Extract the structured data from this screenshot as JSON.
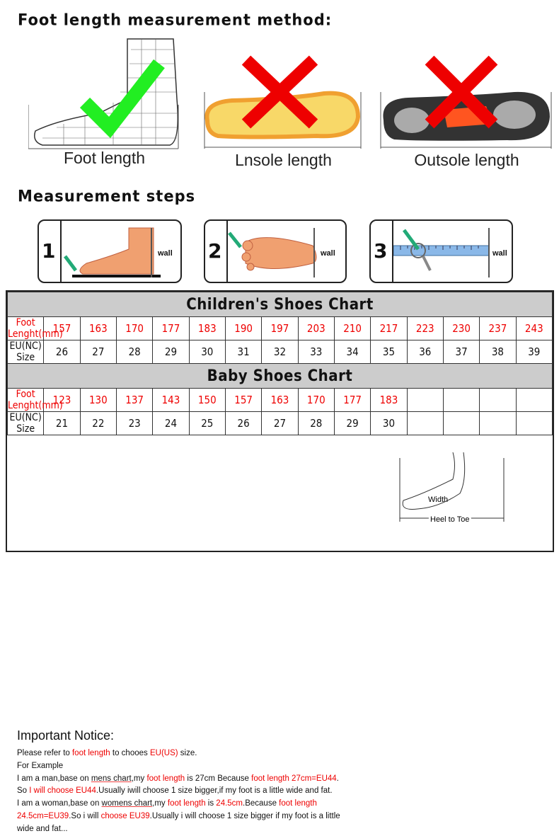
{
  "method": {
    "title": "Foot length measurement method:",
    "items": [
      {
        "label": "Foot length",
        "mark": "check"
      },
      {
        "label": "Lnsole length",
        "mark": "cross"
      },
      {
        "label": "Outsole length",
        "mark": "cross"
      }
    ]
  },
  "steps": {
    "title": "Measurement steps",
    "items": [
      {
        "num": "1",
        "wall": "wall"
      },
      {
        "num": "2",
        "wall": "wall"
      },
      {
        "num": "3",
        "wall": "wall"
      }
    ]
  },
  "children_chart": {
    "title": "Children's Shoes Chart",
    "row1_label": "Foot Lenght(mm)",
    "row2_label": "EU(NC) Size",
    "foot_mm": [
      "157",
      "163",
      "170",
      "177",
      "183",
      "190",
      "197",
      "203",
      "210",
      "217",
      "223",
      "230",
      "237",
      "243"
    ],
    "eu": [
      "26",
      "27",
      "28",
      "29",
      "30",
      "31",
      "32",
      "33",
      "34",
      "35",
      "36",
      "37",
      "38",
      "39"
    ]
  },
  "baby_chart": {
    "title": "Baby Shoes Chart",
    "row1_label": "Foot Lenght(mm)",
    "row2_label": "EU(NC) Size",
    "foot_mm": [
      "123",
      "130",
      "137",
      "143",
      "150",
      "157",
      "163",
      "170",
      "177",
      "183",
      "",
      "",
      "",
      ""
    ],
    "eu": [
      "21",
      "22",
      "23",
      "24",
      "25",
      "26",
      "27",
      "28",
      "29",
      "30",
      "",
      "",
      "",
      ""
    ]
  },
  "notice": {
    "title": "Important Notice:",
    "l1": [
      "Please refer to ",
      "foot length",
      " to chooes ",
      "EU(US)",
      " size."
    ],
    "l2": "For Example",
    "l3": [
      "I am a man,base on ",
      "mens chart",
      ",my ",
      "foot length",
      " is 27cm Because ",
      "foot length 27cm=EU44",
      "."
    ],
    "l4": [
      "So ",
      "I will choose EU44",
      ".Usually iwill choose 1 size bigger,if my foot is a little wide and fat."
    ],
    "l5": [
      "I am a woman,base on ",
      "womens chart",
      ",my ",
      "foot length",
      " is ",
      "24.5cm",
      ".Because ",
      "foot length"
    ],
    "l6": [
      "24.5cm=EU39",
      ".So i will ",
      "choose EU39",
      ".Usually i will choose 1 size bigger if my foot is a little"
    ],
    "l7": "wide and fat...",
    "diagram": {
      "width": "Width",
      "heel_to_toe": "Heel to Toe"
    }
  },
  "colors": {
    "red": "#ee0000",
    "check": "#22ee22",
    "cross": "#ee0000",
    "header_gray": "#cccccc"
  }
}
